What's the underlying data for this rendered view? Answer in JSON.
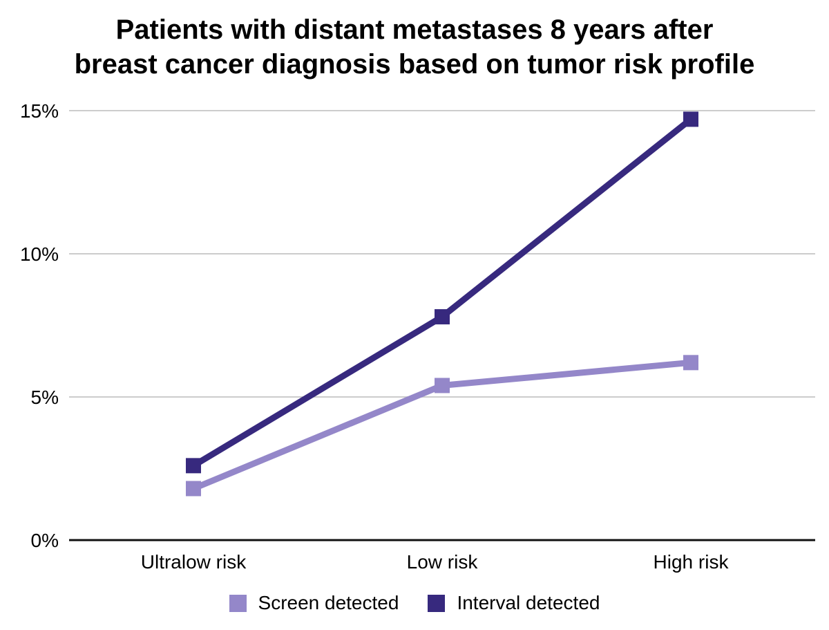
{
  "header": {
    "title_line1": "Patients with distant metastases 8 years after",
    "title_line2": "breast cancer diagnosis based on tumor risk profile"
  },
  "chart_data": {
    "type": "line",
    "title": "Patients with distant metastases 8 years after breast cancer diagnosis based on tumor risk profile",
    "categories": [
      "Ultralow risk",
      "Low risk",
      "High risk"
    ],
    "series": [
      {
        "name": "Screen detected",
        "color": "#9487c9",
        "values": [
          1.8,
          5.4,
          6.2
        ]
      },
      {
        "name": "Interval detected",
        "color": "#37297e",
        "values": [
          2.6,
          7.8,
          14.7
        ]
      }
    ],
    "unit": "%",
    "xlabel": "",
    "ylabel": "",
    "ylim": [
      0,
      15
    ],
    "yticks": [
      {
        "value": 0,
        "label": "0%"
      },
      {
        "value": 5,
        "label": "5%"
      },
      {
        "value": 10,
        "label": "10%"
      },
      {
        "value": 15,
        "label": "15%"
      }
    ],
    "grid": true,
    "legend_position": "bottom",
    "marker_shape": "square"
  },
  "colors": {
    "gridline": "#cccccc",
    "axis_line": "#111111",
    "text": "#000000"
  }
}
